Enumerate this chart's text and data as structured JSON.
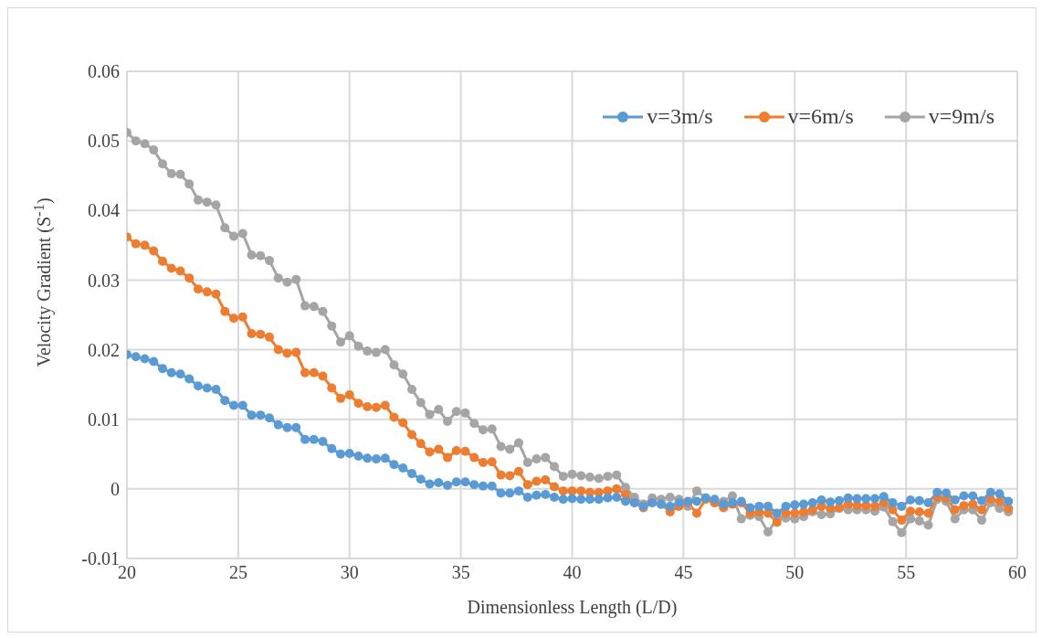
{
  "chart_data": {
    "type": "line",
    "xlabel": "Dimensionless Length (L/D)",
    "ylabel": "Velocity Gradient (S$^{-1}$)",
    "x": [
      20,
      20.4,
      20.8,
      21.2,
      21.6,
      22,
      22.4,
      22.8,
      23.2,
      23.6,
      24,
      24.4,
      24.8,
      25.2,
      25.6,
      26,
      26.4,
      26.8,
      27.2,
      27.6,
      28,
      28.4,
      28.8,
      29.2,
      29.6,
      30,
      30.4,
      30.8,
      31.2,
      31.6,
      32,
      32.4,
      32.8,
      33.2,
      33.6,
      34,
      34.4,
      34.8,
      35.2,
      35.6,
      36,
      36.4,
      36.8,
      37.2,
      37.6,
      38,
      38.4,
      38.8,
      39.2,
      39.6,
      40,
      40.4,
      40.8,
      41.2,
      41.6,
      42,
      42.4,
      42.8,
      43.2,
      43.6,
      44,
      44.4,
      44.8,
      45.2,
      45.6,
      46,
      46.4,
      46.8,
      47.2,
      47.6,
      48,
      48.4,
      48.8,
      49.2,
      49.6,
      50,
      50.4,
      50.8,
      51.2,
      51.6,
      52,
      52.4,
      52.8,
      53.2,
      53.6,
      54,
      54.4,
      54.8,
      55.2,
      55.6,
      56,
      56.4,
      56.8,
      57.2,
      57.6,
      58,
      58.4,
      58.8,
      59.2,
      59.6
    ],
    "series": [
      {
        "name": "v=3m/s",
        "color": "#5b9bd5",
        "values": [
          0.0193,
          0.019,
          0.0187,
          0.0183,
          0.0173,
          0.0167,
          0.0165,
          0.0158,
          0.0148,
          0.0145,
          0.0143,
          0.0127,
          0.012,
          0.012,
          0.0106,
          0.0106,
          0.0102,
          0.0092,
          0.0088,
          0.0088,
          0.0071,
          0.0071,
          0.0068,
          0.0058,
          0.005,
          0.0051,
          0.0047,
          0.0044,
          0.0043,
          0.0044,
          0.0035,
          0.003,
          0.0022,
          0.0014,
          0.0007,
          0.0009,
          0.0005,
          0.001,
          0.001,
          0.0006,
          0.0004,
          0.0004,
          -0.0006,
          -0.0006,
          -0.0003,
          -0.0012,
          -0.0009,
          -0.0008,
          -0.0012,
          -0.0015,
          -0.0014,
          -0.0015,
          -0.0015,
          -0.0015,
          -0.0013,
          -0.0012,
          -0.0018,
          -0.002,
          -0.0025,
          -0.002,
          -0.0022,
          -0.0025,
          -0.002,
          -0.0018,
          -0.0018,
          -0.0013,
          -0.0015,
          -0.0022,
          -0.002,
          -0.0018,
          -0.0027,
          -0.0025,
          -0.0025,
          -0.0035,
          -0.0025,
          -0.0023,
          -0.0022,
          -0.002,
          -0.0016,
          -0.0019,
          -0.0017,
          -0.0013,
          -0.0014,
          -0.0014,
          -0.0014,
          -0.0011,
          -0.002,
          -0.0025,
          -0.0016,
          -0.0017,
          -0.002,
          -0.0005,
          -0.0006,
          -0.0016,
          -0.001,
          -0.001,
          -0.0017,
          -0.0005,
          -0.0007,
          -0.0018
        ]
      },
      {
        "name": "v=6m/s",
        "color": "#ed7d31",
        "values": [
          0.0362,
          0.0352,
          0.035,
          0.0342,
          0.0327,
          0.0317,
          0.0313,
          0.0303,
          0.0287,
          0.0283,
          0.028,
          0.0255,
          0.0245,
          0.0247,
          0.0223,
          0.0222,
          0.0218,
          0.02,
          0.0195,
          0.0196,
          0.0167,
          0.0167,
          0.0162,
          0.0145,
          0.013,
          0.0135,
          0.0123,
          0.0118,
          0.0117,
          0.012,
          0.0103,
          0.0095,
          0.0078,
          0.0065,
          0.0053,
          0.0057,
          0.0045,
          0.0055,
          0.0054,
          0.0045,
          0.0038,
          0.0039,
          0.002,
          0.0019,
          0.0025,
          0.0006,
          0.0011,
          0.0013,
          0.0003,
          -0.0003,
          -0.0003,
          -0.0003,
          -0.0005,
          -0.0005,
          -0.0003,
          0,
          -0.0008,
          -0.002,
          -0.0027,
          -0.002,
          -0.0022,
          -0.0033,
          -0.0025,
          -0.002,
          -0.0035,
          -0.0015,
          -0.002,
          -0.0027,
          -0.0022,
          -0.002,
          -0.0035,
          -0.0033,
          -0.0035,
          -0.0048,
          -0.0035,
          -0.0035,
          -0.0033,
          -0.003,
          -0.0025,
          -0.0028,
          -0.0027,
          -0.0022,
          -0.0024,
          -0.0024,
          -0.0025,
          -0.002,
          -0.003,
          -0.0045,
          -0.0032,
          -0.0033,
          -0.0035,
          -0.0012,
          -0.0013,
          -0.003,
          -0.0024,
          -0.0022,
          -0.003,
          -0.0015,
          -0.0018,
          -0.0028
        ]
      },
      {
        "name": "v=9m/s",
        "color": "#a5a5a5",
        "values": [
          0.0512,
          0.05,
          0.0496,
          0.0487,
          0.0467,
          0.0453,
          0.0452,
          0.0438,
          0.0415,
          0.0412,
          0.0408,
          0.0375,
          0.0363,
          0.0367,
          0.0336,
          0.0335,
          0.0328,
          0.0303,
          0.0297,
          0.0301,
          0.0263,
          0.0262,
          0.0255,
          0.0234,
          0.0211,
          0.022,
          0.0205,
          0.0198,
          0.0196,
          0.02,
          0.0178,
          0.0165,
          0.0143,
          0.0124,
          0.0107,
          0.0114,
          0.0097,
          0.0111,
          0.0109,
          0.0094,
          0.0085,
          0.0086,
          0.0061,
          0.0057,
          0.0066,
          0.0038,
          0.0043,
          0.0045,
          0.0032,
          0.0018,
          0.0021,
          0.0019,
          0.0017,
          0.0015,
          0.0018,
          0.002,
          0.0002,
          -0.0012,
          -0.0022,
          -0.0013,
          -0.0015,
          -0.0012,
          -0.0015,
          -0.0025,
          -0.0003,
          -0.0013,
          -0.002,
          -0.0018,
          -0.001,
          -0.0043,
          -0.0038,
          -0.004,
          -0.0062,
          -0.0043,
          -0.0042,
          -0.0043,
          -0.004,
          -0.0033,
          -0.0037,
          -0.0036,
          -0.0028,
          -0.003,
          -0.003,
          -0.003,
          -0.0032,
          -0.0026,
          -0.0047,
          -0.0063,
          -0.0043,
          -0.0046,
          -0.0052,
          -0.0015,
          -0.0018,
          -0.0043,
          -0.003,
          -0.003,
          -0.0045,
          -0.002,
          -0.0028,
          -0.0033
        ]
      }
    ],
    "xlim": [
      20,
      60
    ],
    "xticks": [
      20,
      25,
      30,
      35,
      40,
      45,
      50,
      55,
      60
    ],
    "ylim": [
      -0.01,
      0.06
    ],
    "yticks": [
      -0.01,
      0,
      0.01,
      0.02,
      0.03,
      0.04,
      0.05,
      0.06
    ],
    "grid": true,
    "legend": "top right",
    "marker": "circle",
    "line_style": "solid"
  }
}
